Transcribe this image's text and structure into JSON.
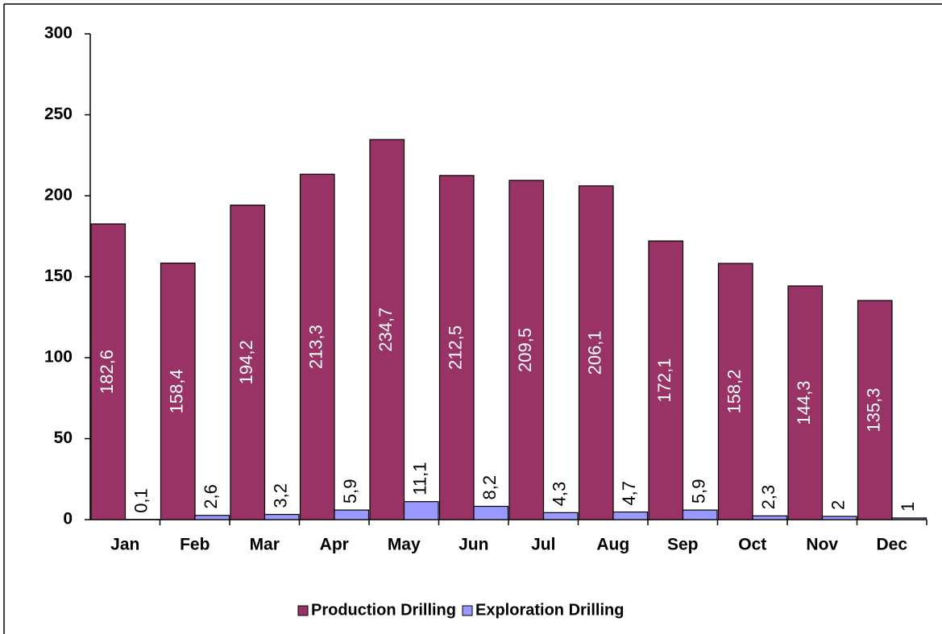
{
  "chart_data": {
    "type": "bar",
    "categories": [
      "Jan",
      "Feb",
      "Mar",
      "Apr",
      "May",
      "Jun",
      "Jul",
      "Aug",
      "Sep",
      "Oct",
      "Nov",
      "Dec"
    ],
    "series": [
      {
        "name": "Production Drilling",
        "color": "#993366",
        "values": [
          182.6,
          158.4,
          194.2,
          213.3,
          234.7,
          212.5,
          209.5,
          206.1,
          172.1,
          158.2,
          144.3,
          135.3
        ],
        "value_labels": [
          "182,6",
          "158,4",
          "194,2",
          "213,3",
          "234,7",
          "212,5",
          "209,5",
          "206,1",
          "172,1",
          "158,2",
          "144,3",
          "135,3"
        ]
      },
      {
        "name": "Exploration Drilling",
        "color": "#9999ff",
        "values": [
          0.1,
          2.6,
          3.2,
          5.9,
          11.1,
          8.2,
          4.3,
          4.7,
          5.9,
          2.3,
          2,
          1
        ],
        "value_labels": [
          "0,1",
          "2,6",
          "3,2",
          "5,9",
          "11,1",
          "8,2",
          "4,3",
          "4,7",
          "5,9",
          "2,3",
          "2",
          "1"
        ]
      }
    ],
    "ylim": [
      0,
      300
    ],
    "yticks": [
      0,
      50,
      100,
      150,
      200,
      250,
      300
    ],
    "legend": "bottom"
  }
}
